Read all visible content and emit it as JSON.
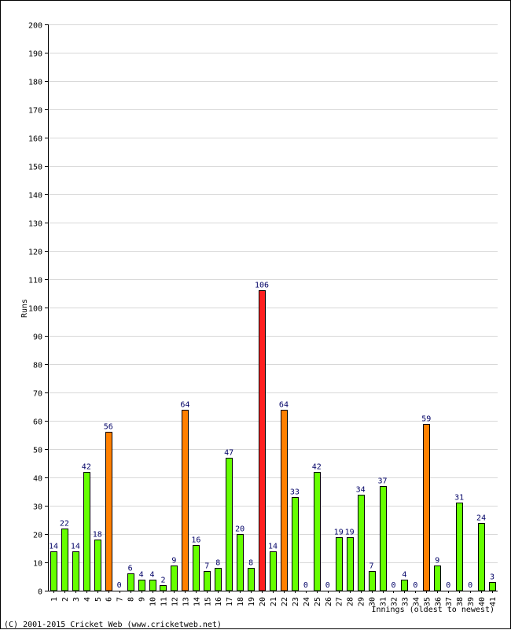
{
  "chart_data": {
    "type": "bar",
    "xlabel": "Innings (oldest to newest)",
    "ylabel": "Runs",
    "ylim": [
      0,
      200
    ],
    "y_ticks": [
      0,
      10,
      20,
      30,
      40,
      50,
      60,
      70,
      80,
      90,
      100,
      110,
      120,
      130,
      140,
      150,
      160,
      170,
      180,
      190,
      200
    ],
    "grid": true,
    "categories": [
      "1",
      "2",
      "3",
      "4",
      "5",
      "6",
      "7",
      "8",
      "9",
      "10",
      "11",
      "12",
      "13",
      "14",
      "15",
      "16",
      "17",
      "18",
      "19",
      "20",
      "21",
      "22",
      "23",
      "24",
      "25",
      "26",
      "27",
      "28",
      "29",
      "30",
      "31",
      "32",
      "33",
      "34",
      "35",
      "36",
      "37",
      "38",
      "39",
      "40",
      "41"
    ],
    "values": [
      14,
      22,
      14,
      42,
      18,
      56,
      0,
      6,
      4,
      4,
      2,
      9,
      64,
      16,
      7,
      8,
      47,
      20,
      8,
      106,
      14,
      64,
      33,
      0,
      42,
      0,
      19,
      19,
      34,
      7,
      37,
      0,
      4,
      0,
      59,
      9,
      0,
      31,
      0,
      24,
      3
    ],
    "colors": {
      "under_50": "#66ff00",
      "fifty": "#ff8000",
      "hundred": "#ff2020",
      "bar_border": "#000000",
      "grid": "#d8d8d8",
      "data_label": "#000066"
    }
  },
  "footer": "(C) 2001-2015 Cricket Web (www.cricketweb.net)"
}
